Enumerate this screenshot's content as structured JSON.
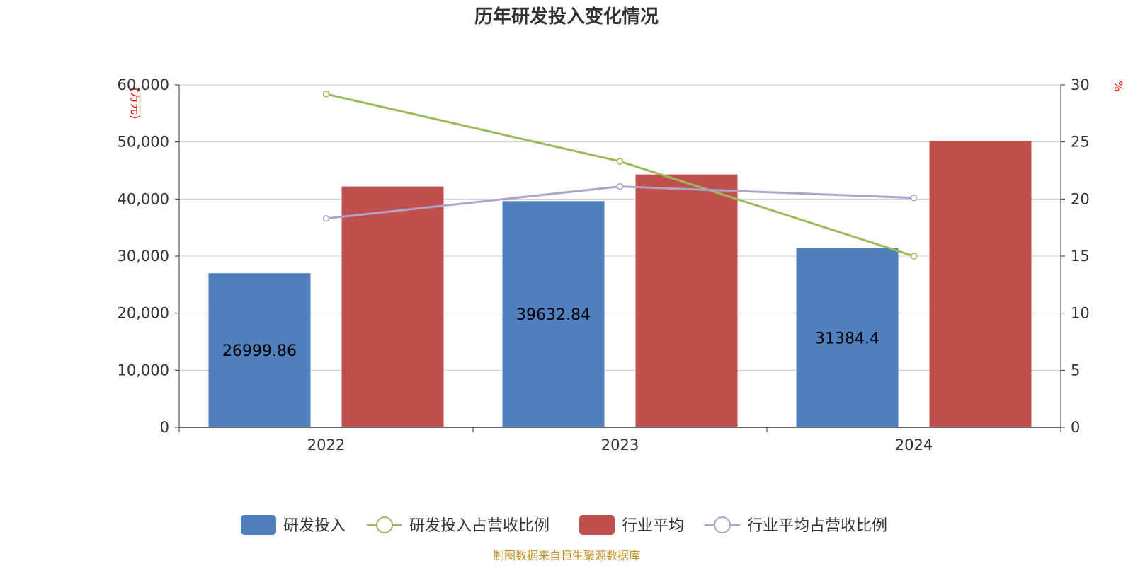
{
  "chart_data": {
    "type": "bar",
    "title": "历年研发投入变化情况",
    "categories": [
      "2022",
      "2023",
      "2024"
    ],
    "ylabel_left": "(万元)",
    "ylabel_right": "%",
    "ylim_left": [
      0,
      60000
    ],
    "ylim_right": [
      0,
      30
    ],
    "yticks_left": [
      "0",
      "10,000",
      "20,000",
      "30,000",
      "40,000",
      "50,000",
      "60,000"
    ],
    "yticks_right": [
      "0",
      "5",
      "10",
      "15",
      "20",
      "25",
      "30"
    ],
    "grid": true,
    "legend_position": "bottom-center",
    "series": [
      {
        "name": "研发投入",
        "kind": "bar",
        "axis": "left",
        "color": "#4f7fbd",
        "values": [
          26999.86,
          39632.84,
          31384.4
        ],
        "labels": [
          "26999.86",
          "39632.84",
          "31384.4"
        ]
      },
      {
        "name": "研发投入占营收比例",
        "kind": "line",
        "axis": "right",
        "color": "#9bbb59",
        "values": [
          29.2,
          23.3,
          15.0
        ]
      },
      {
        "name": "行业平均",
        "kind": "bar",
        "axis": "left",
        "color": "#c0504d",
        "values": [
          42200,
          44300,
          50200
        ]
      },
      {
        "name": "行业平均占营收比例",
        "kind": "line",
        "axis": "right",
        "color": "#b3a2c7",
        "values": [
          18.3,
          21.1,
          20.1
        ]
      }
    ]
  },
  "source": "制图数据来自恒生聚源数据库"
}
